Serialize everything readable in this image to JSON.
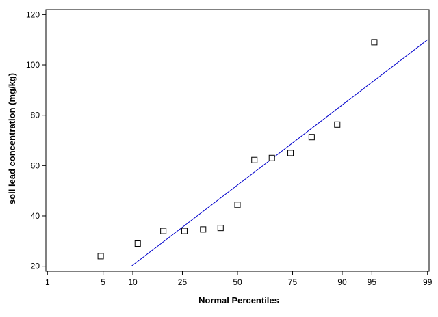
{
  "chart_data": {
    "type": "scatter",
    "title": "",
    "xlabel": "Normal Percentiles",
    "ylabel": "soil lead concentration (mg/kg)",
    "x_scale": "normal-probability",
    "x_ticks": [
      1,
      5,
      10,
      25,
      50,
      75,
      90,
      95,
      99
    ],
    "x_tick_labels": [
      "1",
      "5",
      "10",
      "25",
      "50",
      "75",
      "90",
      "95",
      "99"
    ],
    "xlim": [
      0.95,
      99.05
    ],
    "ylim": [
      18,
      122
    ],
    "y_ticks": [
      20,
      40,
      60,
      80,
      100,
      120
    ],
    "y_tick_labels": [
      "20",
      "40",
      "60",
      "80",
      "100",
      "120"
    ],
    "grid": false,
    "legend": "none",
    "colors": {
      "points": "#000000",
      "fit_line": "#0000cc",
      "frame": "#000000"
    },
    "series": [
      {
        "kind": "points",
        "marker": "open-square",
        "x": [
          4.7,
          11.1,
          18.2,
          25.8,
          33.7,
          41.8,
          50.0,
          58.2,
          66.3,
          74.2,
          81.8,
          88.9,
          95.3
        ],
        "y": [
          24,
          29,
          34,
          34,
          34.6,
          35.2,
          44.4,
          62.2,
          63,
          65,
          71.3,
          76.3,
          109
        ]
      },
      {
        "kind": "fit-line",
        "x": [
          9.7,
          99
        ],
        "y": [
          20,
          110
        ]
      }
    ]
  }
}
